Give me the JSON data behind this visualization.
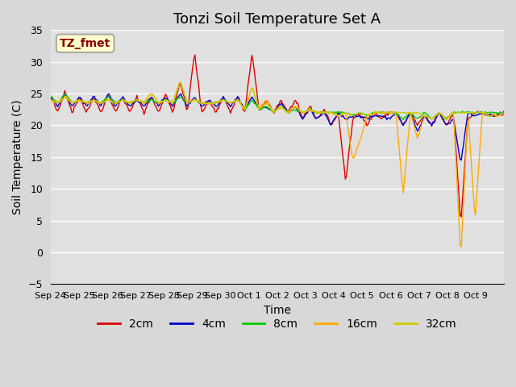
{
  "title": "Tonzi Soil Temperature Set A",
  "xlabel": "Time",
  "ylabel": "Soil Temperature (C)",
  "ylim": [
    -5,
    35
  ],
  "yticks": [
    -5,
    0,
    5,
    10,
    15,
    20,
    25,
    30,
    35
  ],
  "x_labels": [
    "Sep 24",
    "Sep 25",
    "Sep 26",
    "Sep 27",
    "Sep 28",
    "Sep 29",
    "Sep 30",
    "Oct 1",
    "Oct 2",
    "Oct 3",
    "Oct 4",
    "Oct 5",
    "Oct 6",
    "Oct 7",
    "Oct 8",
    "Oct 9"
  ],
  "legend_label": "TZ_fmet",
  "series_labels": [
    "2cm",
    "4cm",
    "8cm",
    "16cm",
    "32cm"
  ],
  "series_colors": [
    "#dd0000",
    "#0000cc",
    "#00cc00",
    "#ffaa00",
    "#cccc00"
  ],
  "bg_color": "#e8e8e8",
  "plot_bg_color": "#e0e0e0",
  "title_fontsize": 13,
  "axis_fontsize": 10,
  "tick_fontsize": 9,
  "n_points": 384
}
